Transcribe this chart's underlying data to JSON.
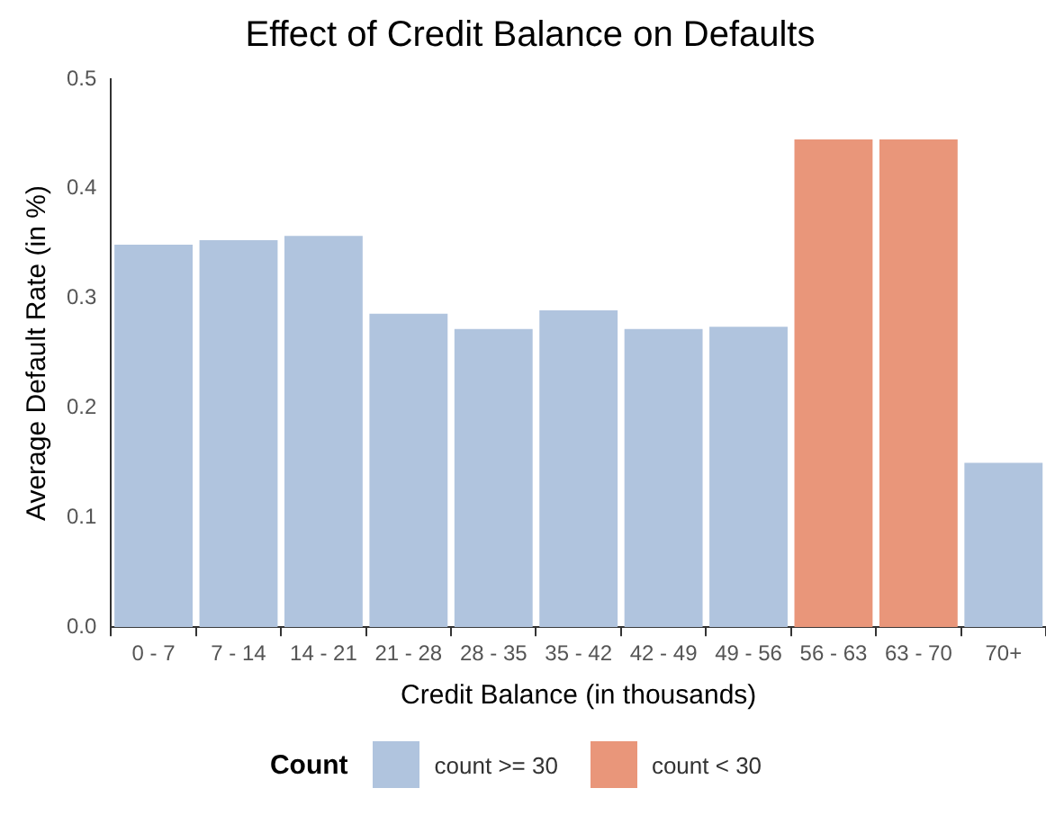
{
  "chart_data": {
    "type": "bar",
    "title": "Effect of Credit Balance on Defaults",
    "xlabel": "Credit Balance (in thousands)",
    "ylabel": "Average Default Rate (in %)",
    "legend_title": "Count",
    "categories": [
      "0 - 7",
      "7 - 14",
      "14 - 21",
      "21 - 28",
      "28 - 35",
      "35 - 42",
      "42 - 49",
      "49 - 56",
      "56 - 63",
      "63 - 70",
      "70+"
    ],
    "series": [
      {
        "name": "count >= 30",
        "color": "#b0c4de",
        "values": [
          0.349,
          0.353,
          0.357,
          0.286,
          0.272,
          0.289,
          0.272,
          0.274,
          null,
          null,
          0.15
        ]
      },
      {
        "name": "count < 30",
        "color": "#e9967a",
        "values": [
          null,
          null,
          null,
          null,
          null,
          null,
          null,
          null,
          0.445,
          0.445,
          null
        ]
      }
    ],
    "ylim": [
      0,
      0.5
    ],
    "yticks": [
      {
        "value": 0,
        "label": "0.0"
      },
      0.1,
      0.2,
      0.3,
      0.4,
      0.5
    ],
    "grid": false,
    "legend": "bottom"
  }
}
